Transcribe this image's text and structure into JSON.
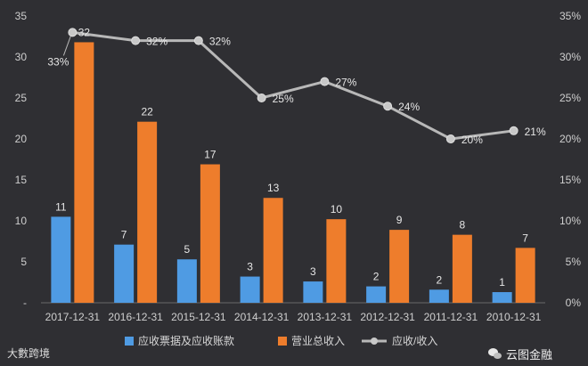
{
  "chart_data": {
    "type": "bar",
    "categories": [
      "2017-12-31",
      "2016-12-31",
      "2015-12-31",
      "2014-12-31",
      "2013-12-31",
      "2012-12-31",
      "2011-12-31",
      "2010-12-31"
    ],
    "series": [
      {
        "name": "应收票据及应收账款",
        "type": "bar",
        "axis": "left",
        "color": "#4f9be3",
        "values": [
          10.5,
          7.1,
          5.3,
          3.2,
          2.6,
          2.0,
          1.6,
          1.3
        ],
        "labels": [
          "11",
          "7",
          "5",
          "3",
          "3",
          "2",
          "2",
          "1"
        ]
      },
      {
        "name": "营业总收入",
        "type": "bar",
        "axis": "left",
        "color": "#ee7d2c",
        "values": [
          31.8,
          22.1,
          16.9,
          12.8,
          10.2,
          8.9,
          8.3,
          6.7
        ],
        "labels": [
          "32",
          "22",
          "17",
          "13",
          "10",
          "9",
          "8",
          "7"
        ]
      },
      {
        "name": "应收/收入",
        "type": "line",
        "axis": "right",
        "color": "#b8b8b8",
        "values": [
          33,
          32,
          32,
          25,
          27,
          24,
          20,
          21
        ],
        "labels": [
          "33%",
          "32%",
          "32%",
          "25%",
          "27%",
          "24%",
          "20%",
          "21%"
        ]
      }
    ],
    "yleft": {
      "min": 0,
      "max": 35,
      "ticks": [
        0,
        5,
        10,
        15,
        20,
        25,
        30,
        35
      ],
      "tick_labels": [
        "-",
        "5",
        "10",
        "15",
        "20",
        "25",
        "30",
        "35"
      ]
    },
    "yright": {
      "min": 0,
      "max": 35,
      "ticks": [
        0,
        5,
        10,
        15,
        20,
        25,
        30,
        35
      ],
      "tick_labels": [
        "0%",
        "5%",
        "10%",
        "15%",
        "20%",
        "25%",
        "30%",
        "35%"
      ]
    },
    "grid": false,
    "legend_position": "bottom"
  },
  "watermarks": {
    "left": "大數跨境",
    "right": "云图金融"
  }
}
